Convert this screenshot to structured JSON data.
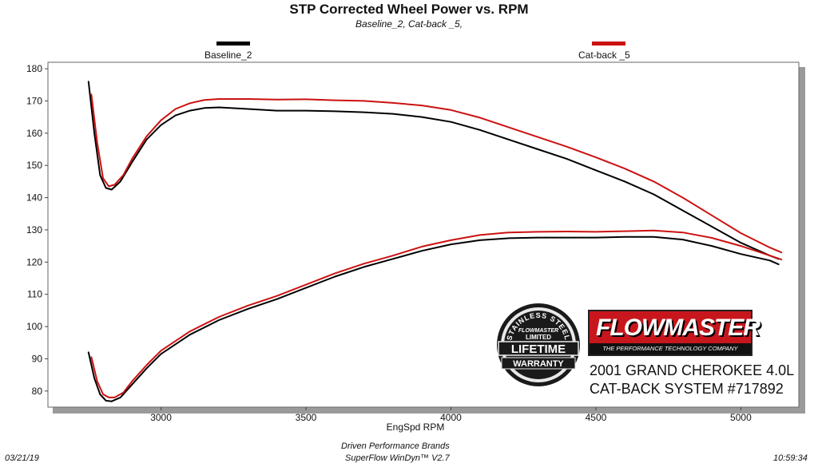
{
  "header": {
    "title": "STP Corrected Wheel Power vs. RPM",
    "subtitle": "Baseline_2, Cat-back _5,"
  },
  "legend": [
    {
      "name": "Baseline_2",
      "color": "#000000"
    },
    {
      "name": "Cat-back _5",
      "color": "#cc1111"
    }
  ],
  "footer": {
    "date": "03/21/19",
    "company": "Driven Performance Brands",
    "software": "SuperFlow WinDyn™  V2.7",
    "time": "10:59:34"
  },
  "branding": {
    "badge_top": "STAINLESS STEEL",
    "badge_brand": "FLOWMASTER",
    "badge_mid": "LIMITED",
    "badge_main": "LIFETIME",
    "badge_bottom": "WARRANTY",
    "logo_name": "FLOWMASTER",
    "logo_tagline": "THE PERFORMANCE TECHNOLOGY COMPANY",
    "vehicle_line1": "2001 GRAND CHEROKEE 4.0L",
    "vehicle_line2": "CAT-BACK SYSTEM #717892"
  },
  "chart_data": {
    "type": "line",
    "title": "STP Corrected Wheel Power vs. RPM",
    "xlabel": "EngSpd  RPM",
    "ylabel": "",
    "xlim": [
      2610,
      5200
    ],
    "ylim": [
      75,
      182
    ],
    "xticks": [
      3000,
      3500,
      4000,
      4500,
      5000
    ],
    "yticks": [
      80,
      90,
      100,
      110,
      120,
      130,
      140,
      150,
      160,
      170,
      180
    ],
    "grid": false,
    "legend_position": "top",
    "series": [
      {
        "name": "Baseline_2",
        "color": "#000000",
        "role": "power",
        "x": [
          2750,
          2770,
          2790,
          2810,
          2830,
          2860,
          2900,
          2950,
          3000,
          3050,
          3100,
          3150,
          3200,
          3300,
          3400,
          3500,
          3600,
          3700,
          3800,
          3900,
          4000,
          4100,
          4200,
          4300,
          4400,
          4500,
          4600,
          4700,
          4800,
          4900,
          5000,
          5100,
          5130
        ],
        "y": [
          176,
          160,
          147,
          143,
          142.5,
          145,
          151,
          158,
          162.5,
          165.5,
          167,
          167.8,
          168,
          167.5,
          167,
          167,
          166.8,
          166.5,
          166,
          165,
          163.5,
          161,
          158,
          155,
          152,
          148.5,
          145,
          141,
          136,
          131,
          126,
          122,
          121
        ]
      },
      {
        "name": "Baseline_2",
        "color": "#000000",
        "role": "torque",
        "x": [
          2750,
          2770,
          2790,
          2810,
          2830,
          2860,
          2900,
          2950,
          3000,
          3100,
          3200,
          3300,
          3400,
          3500,
          3600,
          3700,
          3800,
          3900,
          4000,
          4100,
          4200,
          4300,
          4400,
          4500,
          4600,
          4700,
          4800,
          4900,
          5000,
          5100,
          5130
        ],
        "y": [
          92,
          84,
          79,
          77,
          76.8,
          78,
          82,
          87,
          91.5,
          97.5,
          102,
          105.5,
          108.5,
          112,
          115.5,
          118.5,
          121,
          123.5,
          125.5,
          126.8,
          127.4,
          127.6,
          127.6,
          127.6,
          127.8,
          127.8,
          127,
          125,
          122.5,
          120.5,
          119.3
        ]
      },
      {
        "name": "Cat-back _5",
        "color": "#cc1111",
        "role": "power",
        "x": [
          2760,
          2780,
          2800,
          2820,
          2840,
          2870,
          2900,
          2950,
          3000,
          3050,
          3100,
          3150,
          3200,
          3300,
          3400,
          3500,
          3600,
          3700,
          3800,
          3900,
          4000,
          4100,
          4200,
          4300,
          4400,
          4500,
          4600,
          4700,
          4800,
          4900,
          5000,
          5100,
          5140
        ],
        "y": [
          172,
          157,
          146,
          143.5,
          144,
          147,
          152,
          159,
          164,
          167.5,
          169.3,
          170.3,
          170.6,
          170.6,
          170.4,
          170.5,
          170.2,
          170,
          169.4,
          168.6,
          167.2,
          164.8,
          161.8,
          158.8,
          155.8,
          152.5,
          149,
          145,
          140,
          134.5,
          129,
          124.5,
          123
        ]
      },
      {
        "name": "Cat-back _5",
        "color": "#cc1111",
        "role": "torque",
        "x": [
          2760,
          2780,
          2800,
          2820,
          2840,
          2870,
          2900,
          2950,
          3000,
          3100,
          3200,
          3300,
          3400,
          3500,
          3600,
          3700,
          3800,
          3900,
          4000,
          4100,
          4200,
          4300,
          4400,
          4500,
          4600,
          4700,
          4800,
          4900,
          5000,
          5100,
          5140
        ],
        "y": [
          90.5,
          83,
          79,
          78,
          78,
          79.5,
          83,
          88,
          92.5,
          98.5,
          103,
          106.5,
          109.5,
          113,
          116.5,
          119.5,
          122,
          124.8,
          126.8,
          128.4,
          129.2,
          129.4,
          129.5,
          129.4,
          129.6,
          129.8,
          129.2,
          127.5,
          125,
          122,
          120.8
        ]
      }
    ]
  }
}
